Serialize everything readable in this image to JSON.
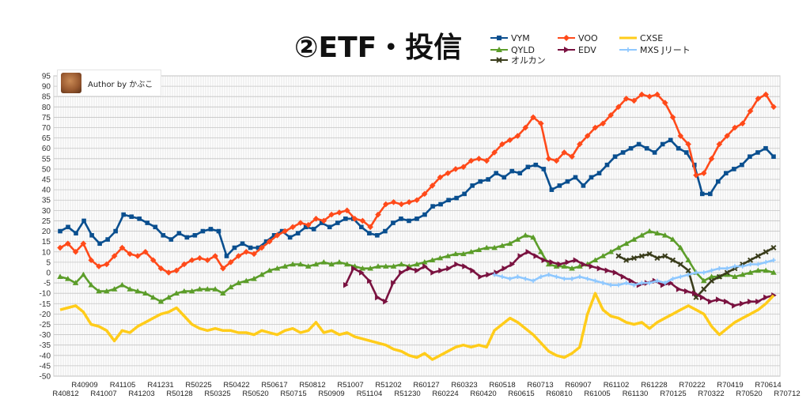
{
  "title": "②ETF・投信",
  "author": "Author by かぶこ",
  "chart_data": {
    "type": "line",
    "ylim": [
      -50,
      95
    ],
    "ystep": 5,
    "grid": true,
    "legend_placement": "top-right",
    "x_labels_upper": [
      "R40909",
      "R41105",
      "R41231",
      "R50225",
      "R50422",
      "R50617",
      "R50812",
      "R51007",
      "R51202",
      "R60127",
      "R60323",
      "R60518",
      "R60713",
      "R60907",
      "R61102",
      "R61228",
      "R70222",
      "R70419",
      "R70614"
    ],
    "x_labels_lower": [
      "R40812",
      "R41007",
      "R41203",
      "R50128",
      "R50325",
      "R50520",
      "R50715",
      "R50909",
      "R51104",
      "R51230",
      "R60224",
      "R60420",
      "R60615",
      "R60810",
      "R61005",
      "R61130",
      "R70125",
      "R70322",
      "R70520",
      "R70712"
    ],
    "series": [
      {
        "name": "VYM",
        "color": "#0a4f8f",
        "marker": "square",
        "values": [
          20,
          22,
          19,
          25,
          18,
          14,
          16,
          20,
          28,
          27,
          26,
          24,
          22,
          18,
          16,
          19,
          17,
          18,
          20,
          21,
          20,
          8,
          12,
          14,
          12,
          12,
          15,
          18,
          20,
          17,
          19,
          22,
          21,
          24,
          22,
          24,
          26,
          26,
          22,
          19,
          18,
          20,
          24,
          26,
          25,
          26,
          28,
          32,
          33,
          35,
          36,
          38,
          42,
          44,
          45,
          48,
          46,
          49,
          48,
          51,
          52,
          50,
          40,
          42,
          44,
          46,
          42,
          46,
          48,
          52,
          56,
          58,
          60,
          62,
          60,
          58,
          62,
          64,
          60,
          58,
          52,
          38,
          38,
          44,
          48,
          50,
          52,
          56,
          58,
          60,
          56
        ]
      },
      {
        "name": "VOO",
        "color": "#ff4a1a",
        "marker": "diamond",
        "values": [
          12,
          14,
          10,
          14,
          6,
          3,
          4,
          8,
          12,
          9,
          8,
          10,
          6,
          2,
          0,
          1,
          4,
          6,
          7,
          6,
          8,
          2,
          5,
          8,
          10,
          9,
          12,
          15,
          18,
          20,
          22,
          24,
          23,
          26,
          25,
          28,
          29,
          30,
          26,
          25,
          22,
          28,
          33,
          34,
          33,
          34,
          35,
          38,
          42,
          46,
          48,
          50,
          51,
          54,
          55,
          54,
          58,
          62,
          64,
          66,
          70,
          75,
          72,
          55,
          54,
          58,
          56,
          62,
          66,
          70,
          72,
          76,
          80,
          84,
          83,
          86,
          85,
          86,
          82,
          75,
          66,
          62,
          47,
          48,
          55,
          62,
          66,
          70,
          72,
          78,
          84,
          86,
          80
        ]
      },
      {
        "name": "QYLD",
        "color": "#5c9d2a",
        "marker": "triangle",
        "values": [
          -2,
          -3,
          -5,
          -1,
          -6,
          -9,
          -9,
          -8,
          -6,
          -8,
          -9,
          -10,
          -12,
          -14,
          -12,
          -10,
          -9,
          -9,
          -8,
          -8,
          -8,
          -10,
          -7,
          -5,
          -4,
          -3,
          -1,
          1,
          2,
          3,
          4,
          4,
          3,
          4,
          5,
          4,
          5,
          4,
          3,
          2,
          2,
          3,
          3,
          3,
          4,
          3,
          4,
          5,
          6,
          7,
          8,
          9,
          9,
          10,
          11,
          12,
          12,
          13,
          14,
          16,
          18,
          17,
          10,
          4,
          3,
          3,
          2,
          3,
          4,
          6,
          8,
          10,
          12,
          14,
          16,
          18,
          20,
          19,
          18,
          16,
          12,
          6,
          0,
          -4,
          -2,
          -2,
          -1,
          -2,
          -1,
          0,
          1,
          1,
          0
        ]
      },
      {
        "name": "オルカン",
        "color": "#3a3d1c",
        "marker": "x",
        "values": [
          null,
          null,
          null,
          null,
          null,
          null,
          null,
          null,
          null,
          null,
          null,
          null,
          null,
          null,
          null,
          null,
          null,
          null,
          null,
          null,
          null,
          null,
          null,
          null,
          null,
          null,
          null,
          null,
          null,
          null,
          null,
          null,
          null,
          null,
          null,
          null,
          null,
          null,
          null,
          null,
          null,
          null,
          null,
          null,
          null,
          null,
          null,
          null,
          null,
          null,
          null,
          null,
          null,
          null,
          null,
          null,
          null,
          null,
          null,
          null,
          null,
          null,
          null,
          null,
          null,
          null,
          null,
          null,
          null,
          null,
          null,
          null,
          8,
          6,
          7,
          8,
          9,
          7,
          8,
          6,
          4,
          1,
          -12,
          -8,
          -4,
          -2,
          0,
          2,
          4,
          6,
          8,
          10,
          12
        ]
      },
      {
        "name": "EDV",
        "color": "#7a1240",
        "marker": "triangle-right",
        "values": [
          null,
          null,
          null,
          null,
          null,
          null,
          null,
          null,
          null,
          null,
          null,
          null,
          null,
          null,
          null,
          null,
          null,
          null,
          null,
          null,
          null,
          null,
          null,
          null,
          null,
          null,
          null,
          null,
          null,
          null,
          null,
          null,
          null,
          null,
          null,
          null,
          -6,
          2,
          0,
          -4,
          -12,
          -14,
          -5,
          0,
          2,
          1,
          3,
          0,
          1,
          2,
          4,
          3,
          1,
          -2,
          -1,
          0,
          2,
          4,
          8,
          10,
          8,
          6,
          5,
          4,
          5,
          6,
          4,
          3,
          2,
          1,
          0,
          -2,
          -4,
          -6,
          -5,
          -4,
          -6,
          -5,
          -8,
          -9,
          -10,
          -12,
          -14,
          -13,
          -14,
          -16,
          -15,
          -14,
          -14,
          -12,
          -11
        ]
      },
      {
        "name": "CXSE",
        "color": "#ffcc1a",
        "marker": "line",
        "values": [
          -18,
          -17,
          -16,
          -19,
          -25,
          -26,
          -28,
          -33,
          -28,
          -29,
          -26,
          -24,
          -22,
          -20,
          -19,
          -17,
          -21,
          -25,
          -27,
          -28,
          -27,
          -28,
          -28,
          -29,
          -29,
          -30,
          -28,
          -29,
          -30,
          -28,
          -27,
          -29,
          -28,
          -24,
          -29,
          -28,
          -30,
          -29,
          -31,
          -32,
          -33,
          -34,
          -35,
          -37,
          -38,
          -40,
          -41,
          -39,
          -42,
          -40,
          -38,
          -36,
          -35,
          -36,
          -35,
          -36,
          -28,
          -25,
          -22,
          -24,
          -27,
          -30,
          -34,
          -38,
          -40,
          -41,
          -39,
          -36,
          -20,
          -10,
          -18,
          -21,
          -22,
          -24,
          -25,
          -24,
          -27,
          -24,
          -22,
          -20,
          -18,
          -16,
          -18,
          -20,
          -26,
          -30,
          -27,
          -24,
          -22,
          -20,
          -18,
          -15,
          -11
        ]
      },
      {
        "name": "MXS Jリート",
        "color": "#8fc8ff",
        "marker": "plus",
        "values": [
          null,
          null,
          null,
          null,
          null,
          null,
          null,
          null,
          null,
          null,
          null,
          null,
          null,
          null,
          null,
          null,
          null,
          null,
          null,
          null,
          null,
          null,
          null,
          null,
          null,
          null,
          null,
          null,
          null,
          null,
          null,
          null,
          null,
          null,
          null,
          null,
          null,
          null,
          null,
          null,
          null,
          null,
          null,
          null,
          null,
          null,
          null,
          null,
          null,
          null,
          null,
          null,
          null,
          null,
          null,
          null,
          -1,
          -2,
          -3,
          -2,
          -3,
          -4,
          -2,
          -1,
          -2,
          -3,
          -3,
          -2,
          -3,
          -4,
          -5,
          -6,
          -6,
          -5,
          -6,
          -5,
          -5,
          -4,
          -5,
          -3,
          -2,
          -1,
          0,
          0,
          1,
          2,
          2,
          3,
          3,
          4,
          4,
          5,
          6
        ]
      }
    ]
  }
}
